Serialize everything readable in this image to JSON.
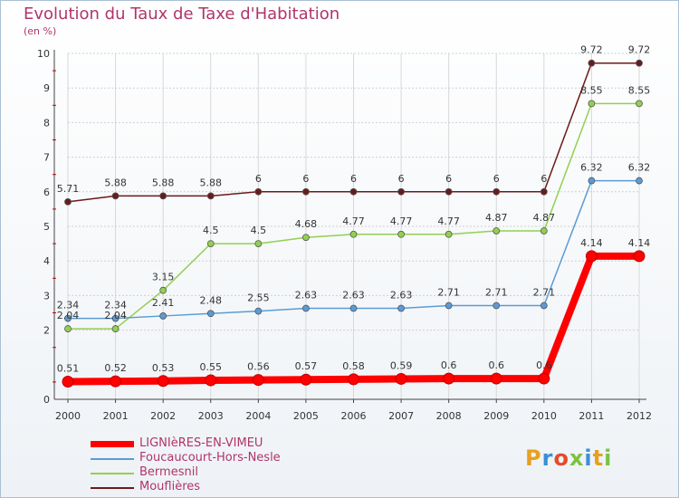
{
  "title": "Evolution du Taux de Taxe d'Habitation",
  "subtitle": "(en %)",
  "logo_text": "Proxiti",
  "colors": {
    "title": "#b0356a",
    "axis": "#333333",
    "tick_mark": "#cc0000",
    "grid": "#cccccc"
  },
  "chart_data": {
    "type": "line",
    "title": "Evolution du Taux de Taxe d'Habitation",
    "subtitle": "(en %)",
    "x": [
      "2000",
      "2001",
      "2002",
      "2003",
      "2004",
      "2005",
      "2006",
      "2007",
      "2008",
      "2009",
      "2010",
      "2011",
      "2012"
    ],
    "ylim": [
      0,
      10
    ],
    "yticks": [
      0,
      2,
      3,
      4,
      5,
      6,
      7,
      8,
      9,
      10
    ],
    "grid": true,
    "legend_position": "bottom-left",
    "series": [
      {
        "name": "LIGNIèRES-EN-VIMEU",
        "color": "#ff0000",
        "values": [
          0.51,
          0.52,
          0.53,
          0.55,
          0.56,
          0.57,
          0.58,
          0.59,
          0.6,
          0.6,
          0.6,
          4.14,
          4.14
        ],
        "labels": [
          "0.51",
          "0.52",
          "0.53",
          "0.55",
          "0.56",
          "0.57",
          "0.58",
          "0.59",
          "0.6",
          "0.6",
          "0.6",
          "4.14",
          "4.14"
        ]
      },
      {
        "name": "Foucaucourt-Hors-Nesle",
        "color": "#5b9bd5",
        "values": [
          2.34,
          2.34,
          2.41,
          2.48,
          2.55,
          2.63,
          2.63,
          2.63,
          2.71,
          2.71,
          2.71,
          6.32,
          6.32
        ],
        "labels": [
          "2.34",
          "2.34",
          "2.41",
          "2.48",
          "2.55",
          "2.63",
          "2.63",
          "2.63",
          "2.71",
          "2.71",
          "2.71",
          "6.32",
          "6.32"
        ]
      },
      {
        "name": "Bermesnil",
        "color": "#92d050",
        "values": [
          2.04,
          2.04,
          3.15,
          4.5,
          4.5,
          4.68,
          4.77,
          4.77,
          4.77,
          4.87,
          4.87,
          8.55,
          8.55
        ],
        "labels": [
          "2.04",
          "2.04",
          "3.15",
          "4.5",
          "4.5",
          "4.68",
          "4.77",
          "4.77",
          "4.77",
          "4.87",
          "4.87",
          "8.55",
          "8.55"
        ]
      },
      {
        "name": "Mouflières",
        "color": "#6b1a1a",
        "values": [
          5.71,
          5.88,
          5.88,
          5.88,
          6,
          6,
          6,
          6,
          6,
          6,
          6,
          9.72,
          9.72
        ],
        "labels": [
          "5.71",
          "5.88",
          "5.88",
          "5.88",
          "6",
          "6",
          "6",
          "6",
          "6",
          "6",
          "6",
          "9.72",
          "9.72"
        ]
      }
    ]
  }
}
